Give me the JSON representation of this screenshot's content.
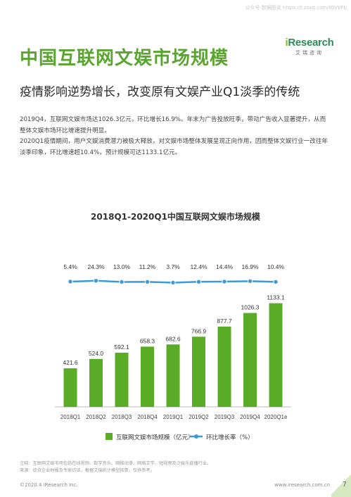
{
  "header": {
    "watermark": "公众号·数据图说 https://t.zsxq.com/IQVVFb",
    "logo_text": "Research",
    "logo_i": "i",
    "logo_sub": "艾瑞咨询"
  },
  "title": "中国互联网文娱市场规模",
  "subtitle": "疫情影响逆势增长，改变原有文娱产业Q1淡季的传统",
  "summary": [
    "2019Q4，互联网文娱市场达1026.3亿元，环比增长16.9%。年末为广告投放旺季，带动广告收入显著提升，从而整体文娱市场环比增速提升明显。",
    "2020Q1疫情期间，用户文娱消费潜力被极大释放，对文娱市场整体发展呈现正向作用，因而整体文娱行业一改往年淡季印象，环比增速超10.4%，预计规模可达1133.1亿元。"
  ],
  "chart_data": {
    "type": "bar",
    "title": "2018Q1-2020Q1中国互联网文娱市场规模",
    "categories": [
      "2018Q1",
      "2018Q2",
      "2018Q3",
      "2018Q4",
      "2019Q1",
      "2019Q2",
      "2019Q3",
      "2019Q4",
      "2020Q1e"
    ],
    "series": [
      {
        "name": "互联网文娱市场规模（亿元）",
        "type": "bar",
        "color": "#5aac26",
        "values": [
          421.6,
          524.0,
          592.1,
          658.3,
          682.6,
          766.9,
          877.7,
          1026.3,
          1133.1
        ],
        "labels": [
          "421.6",
          "524.0",
          "592.1",
          "658.3",
          "682.6",
          "766.9",
          "877.7",
          "1026.3",
          "1133.1"
        ]
      },
      {
        "name": "环比增长率（%）",
        "type": "line",
        "color": "#3b9ad9",
        "values": [
          5.4,
          24.3,
          13.0,
          11.2,
          3.7,
          12.4,
          14.4,
          16.9,
          10.4
        ],
        "labels": [
          "5.4%",
          "24.3%",
          "13.0%",
          "11.2%",
          "3.7%",
          "12.4%",
          "14.4%",
          "16.9%",
          "10.4%"
        ]
      }
    ],
    "ylim": [
      0,
      1200
    ],
    "legend_position": "bottom"
  },
  "notes": [
    "注释：互联网文娱市场包括在线视频、数字音乐、网络动漫、网络文学、短视频及泛娱乐直播行业。",
    "来源：综合企业财报及专家访谈，根据艾瑞统计模型核算，仅供参考。"
  ],
  "footer": {
    "copyright": "©2020.4 iResearch Inc.",
    "url": "www.iresearch.com.cn",
    "page": "7"
  }
}
